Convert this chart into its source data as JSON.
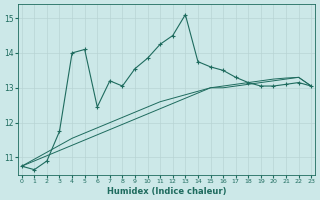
{
  "title": "",
  "xlabel": "Humidex (Indice chaleur)",
  "ylabel": "",
  "bg_color": "#cce8e8",
  "line_color": "#1e6b5e",
  "grid_color": "#b8d4d4",
  "x_data": [
    0,
    1,
    2,
    3,
    4,
    5,
    6,
    7,
    8,
    9,
    10,
    11,
    12,
    13,
    14,
    15,
    16,
    17,
    18,
    19,
    20,
    21,
    22,
    23
  ],
  "y_main": [
    10.75,
    10.65,
    10.9,
    11.75,
    14.0,
    14.1,
    12.45,
    13.2,
    13.05,
    13.55,
    13.85,
    14.25,
    14.5,
    15.1,
    13.75,
    13.6,
    13.5,
    13.3,
    13.15,
    13.05,
    13.05,
    13.1,
    13.15,
    13.05
  ],
  "y_reg1": [
    10.75,
    10.9,
    11.05,
    11.2,
    11.35,
    11.5,
    11.65,
    11.8,
    11.95,
    12.1,
    12.25,
    12.4,
    12.55,
    12.7,
    12.85,
    13.0,
    13.0,
    13.05,
    13.1,
    13.15,
    13.2,
    13.25,
    13.3,
    13.05
  ],
  "y_reg2": [
    10.75,
    10.95,
    11.15,
    11.35,
    11.55,
    11.7,
    11.85,
    12.0,
    12.15,
    12.3,
    12.45,
    12.6,
    12.7,
    12.8,
    12.9,
    13.0,
    13.05,
    13.1,
    13.15,
    13.2,
    13.25,
    13.28,
    13.3,
    13.05
  ],
  "ylim": [
    10.5,
    15.4
  ],
  "yticks": [
    11,
    12,
    13,
    14,
    15
  ],
  "xlim": [
    -0.3,
    23.3
  ],
  "xticks": [
    0,
    1,
    2,
    3,
    4,
    5,
    6,
    7,
    8,
    9,
    10,
    11,
    12,
    13,
    14,
    15,
    16,
    17,
    18,
    19,
    20,
    21,
    22,
    23
  ]
}
